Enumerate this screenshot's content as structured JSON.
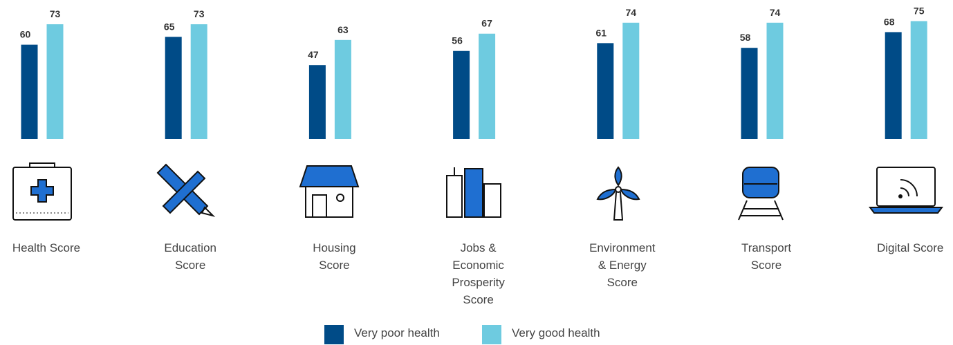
{
  "chart_data": {
    "type": "bar",
    "categories": [
      "Health Score",
      "Education Score",
      "Housing Score",
      "Jobs & Economic Prosperity Score",
      "Environment & Energy Score",
      "Transport Score",
      "Digital Score"
    ],
    "series": [
      {
        "name": "Very poor health",
        "color": "#004b87",
        "values": [
          60,
          65,
          47,
          56,
          61,
          58,
          68
        ]
      },
      {
        "name": "Very good health",
        "color": "#6ecbe0",
        "values": [
          73,
          73,
          63,
          67,
          74,
          74,
          75
        ]
      }
    ],
    "ylim": [
      0,
      88
    ]
  }
}
